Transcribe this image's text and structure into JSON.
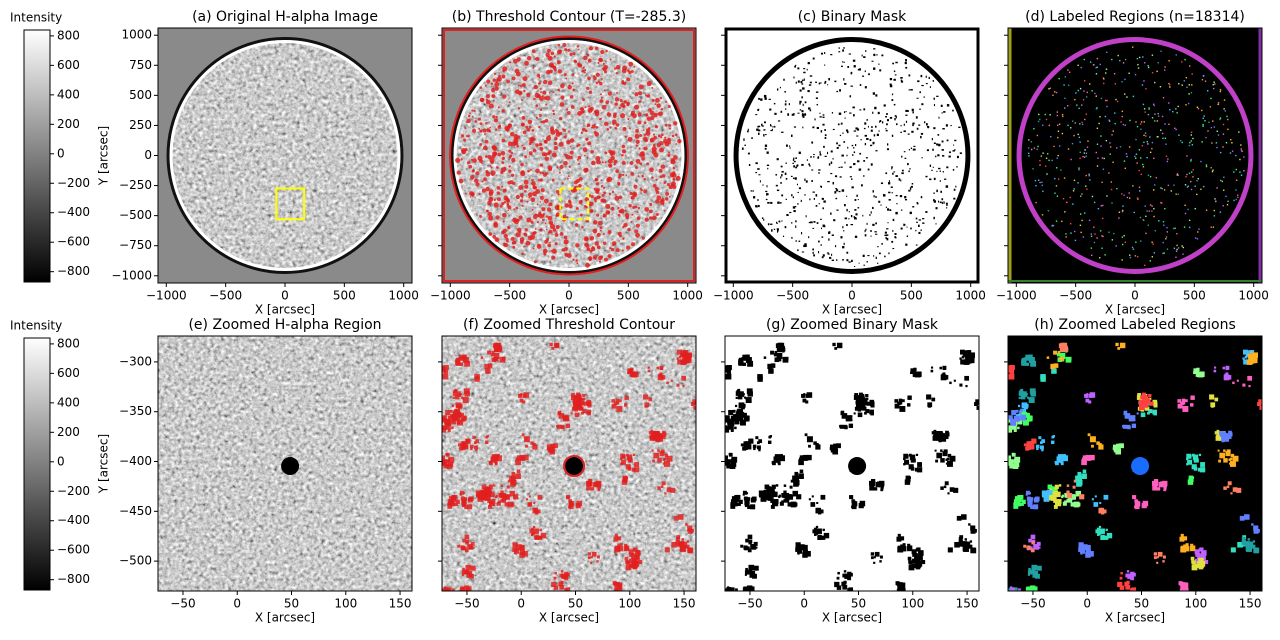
{
  "chart_data": [
    {
      "type": "image",
      "title": "(a) Original H-alpha Image",
      "xlabel": "X [arcsec]",
      "ylabel": "Y [arcsec]",
      "xlim": [
        -1070,
        1070
      ],
      "ylim": [
        -1060,
        1060
      ],
      "disk_radius": 960,
      "xticks": [
        {
          "value": -1000,
          "label": "−1000"
        },
        {
          "value": -500,
          "label": "−500"
        },
        0,
        500,
        1000
      ],
      "yticks": [
        {
          "value": -1000,
          "label": "−1000"
        },
        {
          "value": -750,
          "label": "−750"
        },
        {
          "value": -500,
          "label": "−500"
        },
        {
          "value": -250,
          "label": "−250"
        },
        0,
        250,
        500,
        750,
        1000
      ],
      "zoom_box": {
        "x": [
          -73,
          161
        ],
        "y": [
          -530,
          -274
        ]
      },
      "box_color": "#ffff00"
    },
    {
      "type": "image",
      "title": "(b) Threshold Contour (T=-285.3)",
      "xlabel": "X [arcsec]",
      "sharey": true,
      "xlim": [
        -1070,
        1070
      ],
      "disk_radius": 960,
      "xticks": [
        {
          "value": -1000,
          "label": "−1000"
        },
        {
          "value": -500,
          "label": "−500"
        },
        0,
        500,
        1000
      ],
      "zoom_box": {
        "x": [
          -73,
          161
        ],
        "y": [
          -530,
          -274
        ]
      },
      "box_color": "#ffff00",
      "contour_color": "#e02020"
    },
    {
      "type": "image",
      "title": "(c) Binary Mask",
      "xlabel": "X [arcsec]",
      "sharey": true,
      "xlim": [
        -1070,
        1070
      ],
      "disk_radius": 960,
      "xticks": [
        {
          "value": -1000,
          "label": "−1000"
        },
        {
          "value": -500,
          "label": "−500"
        },
        0,
        500,
        1000
      ]
    },
    {
      "type": "image",
      "title": "(d) Labeled Regions (n=18314)",
      "xlabel": "X [arcsec]",
      "sharey": true,
      "xlim": [
        -1070,
        1070
      ],
      "disk_radius": 960,
      "xticks": [
        {
          "value": -1000,
          "label": "−1000"
        },
        {
          "value": -500,
          "label": "−500"
        },
        0,
        500,
        1000
      ]
    },
    {
      "type": "image",
      "title": "(e) Zoomed H-alpha Region",
      "xlabel": "X [arcsec]",
      "ylabel": "Y [arcsec]",
      "xlim": [
        -73,
        161
      ],
      "ylim": [
        -530,
        -274
      ],
      "xticks": [
        {
          "value": -50,
          "label": "−50"
        },
        0,
        50,
        100,
        150
      ],
      "yticks": [
        {
          "value": -500,
          "label": "−500"
        },
        {
          "value": -450,
          "label": "−450"
        },
        {
          "value": -400,
          "label": "−400"
        },
        {
          "value": -350,
          "label": "−350"
        },
        {
          "value": -300,
          "label": "−300"
        }
      ]
    },
    {
      "type": "image",
      "title": "(f) Zoomed Threshold Contour",
      "xlabel": "X [arcsec]",
      "sharey": true,
      "xlim": [
        -73,
        161
      ],
      "xticks": [
        {
          "value": -50,
          "label": "−50"
        },
        0,
        50,
        100,
        150
      ],
      "contour_color": "#e02020"
    },
    {
      "type": "image",
      "title": "(g) Zoomed Binary Mask",
      "xlabel": "X [arcsec]",
      "sharey": true,
      "xlim": [
        -73,
        161
      ],
      "xticks": [
        {
          "value": -50,
          "label": "−50"
        },
        0,
        50,
        100,
        150
      ]
    },
    {
      "type": "image",
      "title": "(h) Zoomed Labeled Regions",
      "xlabel": "X [arcsec]",
      "sharey": true,
      "xlim": [
        -73,
        161
      ],
      "xticks": [
        {
          "value": -50,
          "label": "−50"
        },
        0,
        50,
        100,
        150
      ]
    },
    {
      "type": "colorbar",
      "title": "Intensity",
      "ylim": [
        -870,
        840
      ],
      "yticks": [
        {
          "value": -800,
          "label": "−800"
        },
        {
          "value": -600,
          "label": "−600"
        },
        {
          "value": -400,
          "label": "−400"
        },
        {
          "value": -200,
          "label": "−200"
        },
        0,
        200,
        400,
        600,
        800
      ]
    },
    {
      "type": "colorbar",
      "title": "Intensity",
      "ylim": [
        -870,
        840
      ],
      "yticks": [
        {
          "value": -800,
          "label": "−800"
        },
        {
          "value": -600,
          "label": "−600"
        },
        {
          "value": -400,
          "label": "−400"
        },
        {
          "value": -200,
          "label": "−200"
        },
        0,
        200,
        400,
        600,
        800
      ]
    }
  ]
}
